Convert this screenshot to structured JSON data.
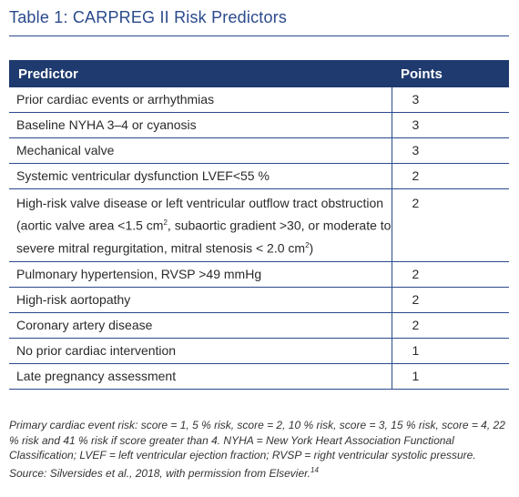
{
  "title": "Table 1: CARPREG II Risk Predictors",
  "table": {
    "headers": [
      "Predictor",
      "Points"
    ],
    "rows": [
      {
        "predictor": "Prior cardiac events or arrhythmias",
        "points": "3"
      },
      {
        "predictor": "Baseline NYHA 3–4 or cyanosis",
        "points": "3"
      },
      {
        "predictor": "Mechanical valve",
        "points": "3"
      },
      {
        "predictor": "Systemic ventricular dysfunction LVEF<55 %",
        "points": "2"
      },
      {
        "predictor_parts": [
          "High-risk valve disease or left ventricular outflow tract obstruction (aortic valve area <1.5 cm",
          "2",
          ", subaortic gradient >30, or moderate to severe mitral regurgitation, mitral stenosis < 2.0 cm",
          "2",
          ")"
        ],
        "points": "2"
      },
      {
        "predictor": "Pulmonary hypertension, RVSP >49 mmHg",
        "points": "2"
      },
      {
        "predictor": "High-risk aortopathy",
        "points": "2"
      },
      {
        "predictor": "Coronary artery disease",
        "points": "2"
      },
      {
        "predictor": "No prior cardiac intervention",
        "points": "1"
      },
      {
        "predictor": "Late pregnancy assessment",
        "points": "1"
      }
    ]
  },
  "footnote": {
    "text": "Primary cardiac event risk: score = 1, 5 % risk, score = 2, 10 % risk, score = 3, 15 % risk, score = 4, 22 % risk and 41 % risk if score greater than 4. NYHA = New York Heart Association Functional Classification; LVEF = left ventricular ejection fraction; RVSP = right ventricular systolic pressure. Source: Silversides et al., 2018, with permission from Elsevier.",
    "ref": "14"
  },
  "colors": {
    "accent": "#2a4a8c",
    "header_bg": "#1e3a6e"
  }
}
